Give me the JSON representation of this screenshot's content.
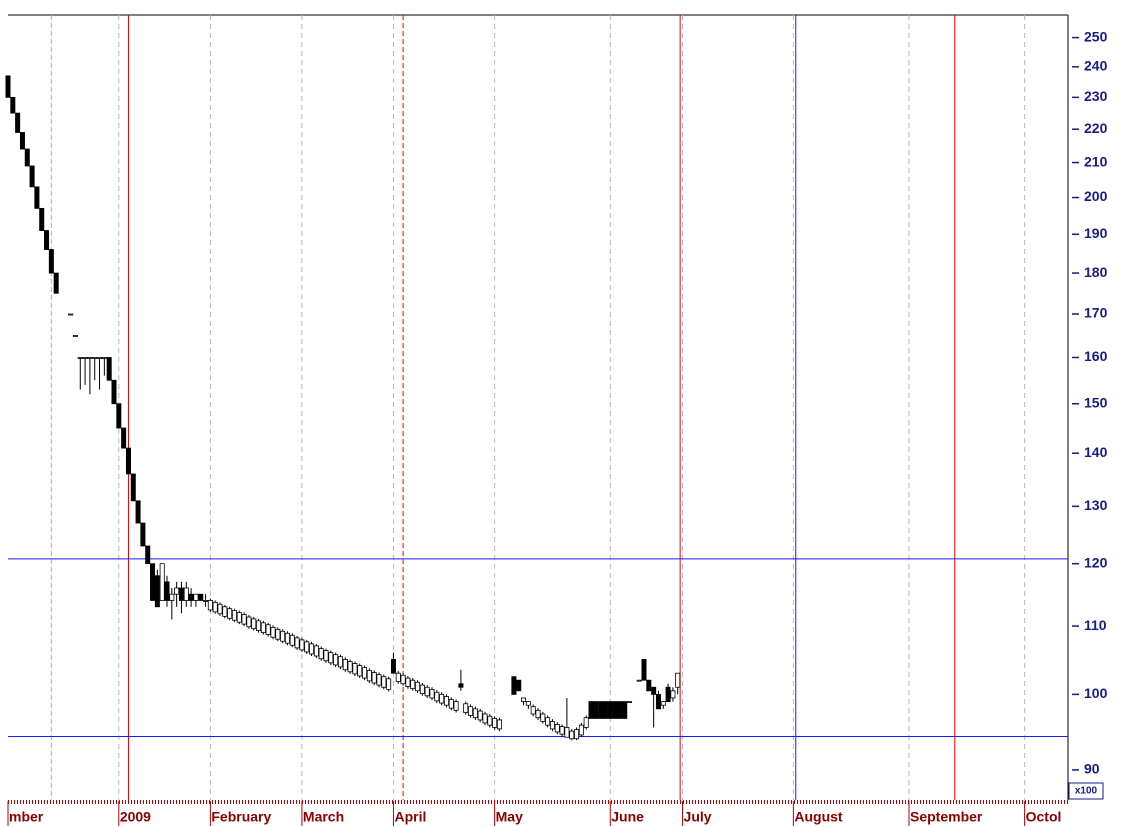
{
  "chart_data": {
    "type": "candlestick",
    "log_scale": true,
    "ylim": [
      86.3,
      258
    ],
    "yticks": [
      90,
      100,
      110,
      120,
      130,
      140,
      150,
      160,
      170,
      180,
      190,
      200,
      210,
      220,
      230,
      240,
      250
    ],
    "y_multiplier": "x100",
    "xlim": [
      0,
      220
    ],
    "xticks": [
      {
        "value": 0,
        "label": "mber"
      },
      {
        "value": 23,
        "label": "2009"
      },
      {
        "value": 42,
        "label": "February"
      },
      {
        "value": 61,
        "label": "March"
      },
      {
        "value": 80,
        "label": "April"
      },
      {
        "value": 101,
        "label": "May"
      },
      {
        "value": 125,
        "label": "June"
      },
      {
        "value": 140,
        "label": "July"
      },
      {
        "value": 163,
        "label": "August"
      },
      {
        "value": 187,
        "label": "September"
      },
      {
        "value": 211,
        "label": "Octol"
      }
    ],
    "x_grid": true,
    "up_color": "#ffffff",
    "down_color": "#000000",
    "hlines": [
      {
        "y": 120.8,
        "color": "#1a1aff"
      },
      {
        "y": 94.3,
        "color": "#1a1aff"
      }
    ],
    "vlines": [
      {
        "x": 9,
        "color": "#b0b0b0",
        "dashed": true
      },
      {
        "x": 25,
        "color": "#e00000",
        "dashed": false
      },
      {
        "x": 82,
        "color": "#e00000",
        "dashed": true
      },
      {
        "x": 139.5,
        "color": "#e00000",
        "dashed": false
      },
      {
        "x": 163.5,
        "color": "#1a1aff",
        "dashed": false
      },
      {
        "x": 196.5,
        "color": "#e00000",
        "dashed": false
      }
    ],
    "candles": [
      [
        0,
        237,
        237,
        230,
        230
      ],
      [
        1,
        230,
        230,
        225,
        225
      ],
      [
        2,
        225,
        225,
        219,
        219
      ],
      [
        3,
        219,
        219,
        214,
        214
      ],
      [
        4,
        214,
        214,
        209,
        209
      ],
      [
        5,
        209,
        209,
        203,
        203
      ],
      [
        6,
        203,
        203,
        197,
        197
      ],
      [
        7,
        197,
        197,
        191,
        191
      ],
      [
        8,
        191,
        191,
        186,
        186
      ],
      [
        9,
        186,
        186,
        180,
        180
      ],
      [
        10,
        180,
        180,
        175,
        175
      ],
      [
        13,
        170,
        170,
        170,
        170
      ],
      [
        14,
        165,
        165,
        165,
        165
      ],
      [
        15,
        160,
        160,
        153,
        160
      ],
      [
        16,
        160,
        160,
        154,
        160
      ],
      [
        17,
        160,
        160,
        152,
        160
      ],
      [
        18,
        160,
        160,
        155,
        160
      ],
      [
        19,
        160,
        160,
        153,
        160
      ],
      [
        20,
        160,
        160,
        156,
        160
      ],
      [
        21,
        160,
        160,
        155,
        155
      ],
      [
        22,
        155,
        155,
        150,
        150
      ],
      [
        23,
        150,
        150,
        145,
        145
      ],
      [
        24,
        145,
        145,
        141,
        141
      ],
      [
        25,
        141,
        141,
        136,
        136
      ],
      [
        26,
        136,
        136,
        131,
        131
      ],
      [
        27,
        131,
        131,
        127,
        127
      ],
      [
        28,
        127,
        127,
        123,
        123
      ],
      [
        29,
        123,
        123,
        120,
        120
      ],
      [
        30,
        120,
        120,
        114,
        114
      ],
      [
        31,
        118,
        119,
        113,
        113
      ],
      [
        32,
        114,
        120,
        114,
        120
      ],
      [
        33,
        117,
        118,
        113,
        114
      ],
      [
        34,
        114,
        116,
        111,
        115
      ],
      [
        35,
        115,
        117,
        113,
        116
      ],
      [
        36,
        116,
        117,
        112,
        114
      ],
      [
        37,
        114,
        117,
        113,
        116
      ],
      [
        38,
        115,
        116,
        113,
        114
      ],
      [
        39,
        114,
        115,
        113,
        115
      ],
      [
        40,
        115,
        115,
        114,
        114
      ],
      [
        41,
        114,
        115,
        113,
        114
      ],
      [
        42,
        112.5,
        114.3,
        112.2,
        114.0
      ],
      [
        43,
        112.2,
        114.0,
        111.9,
        113.7
      ],
      [
        44,
        111.9,
        113.7,
        111.6,
        113.4
      ],
      [
        45,
        111.5,
        113.3,
        111.2,
        113.0
      ],
      [
        46,
        111.2,
        113.0,
        110.9,
        112.7
      ],
      [
        47,
        110.9,
        112.7,
        110.6,
        112.4
      ],
      [
        48,
        110.6,
        112.4,
        110.3,
        112.1
      ],
      [
        49,
        110.3,
        112.1,
        110.0,
        111.8
      ],
      [
        50,
        109.9,
        111.7,
        109.6,
        111.4
      ],
      [
        51,
        109.6,
        111.4,
        109.3,
        111.1
      ],
      [
        52,
        109.3,
        111.1,
        109.0,
        110.8
      ],
      [
        53,
        109.0,
        110.8,
        108.7,
        110.5
      ],
      [
        54,
        108.7,
        110.5,
        108.4,
        110.2
      ],
      [
        55,
        108.3,
        110.1,
        108.0,
        109.8
      ],
      [
        56,
        108.0,
        109.8,
        107.7,
        109.5
      ],
      [
        57,
        107.7,
        109.5,
        107.4,
        109.2
      ],
      [
        58,
        107.4,
        109.2,
        107.1,
        108.9
      ],
      [
        59,
        107.1,
        108.9,
        106.8,
        108.6
      ],
      [
        60,
        106.7,
        108.5,
        106.4,
        108.2
      ],
      [
        61,
        106.4,
        108.2,
        106.1,
        107.9
      ],
      [
        62,
        106.1,
        107.9,
        105.8,
        107.6
      ],
      [
        63,
        105.8,
        107.6,
        105.5,
        107.3
      ],
      [
        64,
        105.5,
        107.3,
        105.2,
        107.0
      ],
      [
        65,
        105.1,
        106.9,
        104.8,
        106.6
      ],
      [
        66,
        104.8,
        106.6,
        104.5,
        106.3
      ],
      [
        67,
        104.5,
        106.3,
        104.2,
        106.0
      ],
      [
        68,
        104.2,
        106.0,
        103.9,
        105.7
      ],
      [
        69,
        103.9,
        105.7,
        103.6,
        105.4
      ],
      [
        70,
        103.5,
        105.3,
        103.2,
        105.0
      ],
      [
        71,
        103.2,
        105.0,
        102.9,
        104.7
      ],
      [
        72,
        102.9,
        104.7,
        102.6,
        104.4
      ],
      [
        73,
        102.6,
        104.4,
        102.3,
        104.1
      ],
      [
        74,
        102.3,
        104.1,
        102.0,
        103.8
      ],
      [
        75,
        101.9,
        103.7,
        101.6,
        103.4
      ],
      [
        76,
        101.6,
        103.4,
        101.3,
        103.1
      ],
      [
        77,
        101.3,
        103.1,
        101.0,
        102.8
      ],
      [
        78,
        101.0,
        102.8,
        100.7,
        102.5
      ],
      [
        79,
        100.7,
        102.5,
        100.4,
        102.2
      ],
      [
        80,
        105,
        106,
        103,
        103
      ],
      [
        81,
        101.8,
        103.3,
        101.5,
        103.0
      ],
      [
        82,
        101.5,
        103.0,
        101.2,
        102.7
      ],
      [
        83,
        101.1,
        102.6,
        100.8,
        102.3
      ],
      [
        84,
        100.8,
        102.3,
        100.5,
        102.0
      ],
      [
        85,
        100.5,
        102.0,
        100.2,
        101.7
      ],
      [
        86,
        100.1,
        101.6,
        99.8,
        101.3
      ],
      [
        87,
        99.8,
        101.3,
        99.5,
        101.0
      ],
      [
        88,
        99.5,
        101.0,
        99.2,
        100.7
      ],
      [
        89,
        99.1,
        100.6,
        98.8,
        100.3
      ],
      [
        90,
        98.8,
        100.3,
        98.5,
        100.0
      ],
      [
        91,
        98.5,
        100.0,
        98.2,
        99.7
      ],
      [
        92,
        98.1,
        99.6,
        97.8,
        99.3
      ],
      [
        93,
        97.8,
        99.3,
        97.5,
        99.0
      ],
      [
        94,
        101.5,
        103.5,
        100.5,
        101
      ],
      [
        95,
        97.5,
        99.0,
        97.2,
        98.7
      ],
      [
        96,
        97.1,
        98.6,
        96.8,
        98.3
      ],
      [
        97,
        96.8,
        98.3,
        96.5,
        98.0
      ],
      [
        98,
        96.5,
        98.0,
        96.2,
        97.7
      ],
      [
        99,
        96.1,
        97.6,
        95.8,
        97.3
      ],
      [
        100,
        95.8,
        97.3,
        95.5,
        97.0
      ],
      [
        101,
        95.5,
        97.0,
        95.2,
        96.7
      ],
      [
        102,
        95.3,
        96.8,
        95.0,
        96.5
      ],
      [
        105,
        102.5,
        102.5,
        100,
        100
      ],
      [
        106,
        102,
        102,
        100.5,
        100.5
      ],
      [
        107,
        99,
        99.5,
        98.5,
        99.5
      ],
      [
        108,
        98.5,
        99,
        98,
        99
      ],
      [
        109,
        97.3,
        98.6,
        97.0,
        98.3
      ],
      [
        110,
        96.8,
        98.1,
        96.5,
        97.8
      ],
      [
        111,
        96.3,
        97.6,
        96.0,
        97.3
      ],
      [
        112,
        95.8,
        97.1,
        95.5,
        96.8
      ],
      [
        113,
        95.3,
        96.6,
        95.0,
        96.3
      ],
      [
        114,
        94.9,
        96.2,
        94.6,
        95.9
      ],
      [
        115,
        94.6,
        95.9,
        94.3,
        95.6
      ],
      [
        116,
        94.2,
        99.5,
        94.2,
        95.5
      ],
      [
        117,
        94.0,
        95.3,
        93.8,
        95.0
      ],
      [
        118,
        94.0,
        95.5,
        93.8,
        95.2
      ],
      [
        119,
        94.5,
        96.1,
        94.2,
        95.8
      ],
      [
        120,
        95.5,
        97.1,
        95.2,
        96.8
      ],
      [
        121,
        99,
        99,
        96.7,
        96.7
      ],
      [
        122,
        99,
        99,
        96.7,
        96.7
      ],
      [
        123,
        99,
        99,
        96.7,
        96.7
      ],
      [
        124,
        99,
        99,
        96.7,
        96.7
      ],
      [
        125,
        99,
        99,
        96.7,
        96.7
      ],
      [
        126,
        99,
        99,
        96.7,
        96.7
      ],
      [
        127,
        99,
        99,
        96.7,
        96.7
      ],
      [
        128,
        99,
        99,
        96.7,
        96.7
      ],
      [
        129,
        99,
        99,
        99,
        99
      ],
      [
        131,
        102,
        102,
        102,
        102
      ],
      [
        132,
        105,
        105,
        102,
        102
      ],
      [
        133,
        102,
        102,
        100.5,
        100.5
      ],
      [
        134,
        101,
        101,
        95.5,
        100
      ],
      [
        135,
        100,
        100.5,
        98,
        98
      ],
      [
        136,
        98.5,
        99,
        98,
        99
      ],
      [
        137,
        101,
        101.5,
        99,
        99
      ],
      [
        138,
        99.5,
        101,
        99,
        100.5
      ],
      [
        139,
        101,
        103,
        100,
        103
      ]
    ]
  }
}
